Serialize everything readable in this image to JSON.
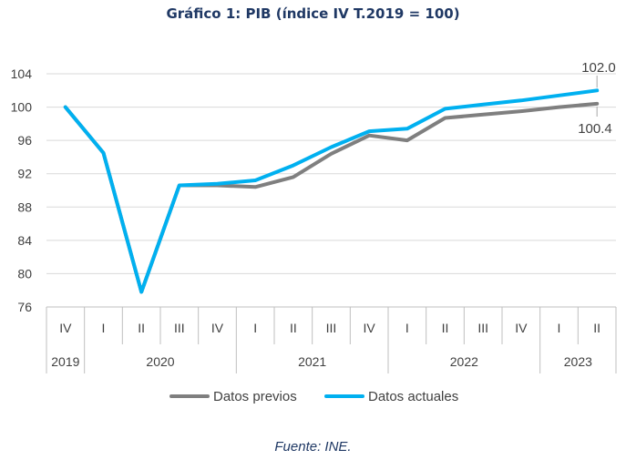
{
  "chart_data": {
    "type": "line",
    "title": "Gráfico 1: PIB (índice IV T.2019 = 100)",
    "source": "Fuente: INE.",
    "ylim": [
      76,
      104
    ],
    "yticks": [
      76,
      80,
      84,
      88,
      92,
      96,
      100,
      104
    ],
    "grid": "horizontal",
    "legend_position": "bottom",
    "quarters": [
      "IV",
      "I",
      "II",
      "III",
      "IV",
      "I",
      "II",
      "III",
      "IV",
      "I",
      "II",
      "III",
      "IV",
      "I",
      "II"
    ],
    "year_groups": [
      {
        "label": "2019",
        "quarters": 1
      },
      {
        "label": "2020",
        "quarters": 4
      },
      {
        "label": "2021",
        "quarters": 4
      },
      {
        "label": "2022",
        "quarters": 4
      },
      {
        "label": "2023",
        "quarters": 2
      }
    ],
    "series": [
      {
        "name": "Datos previos",
        "color": "#7f7f7f",
        "values": [
          100.0,
          94.5,
          77.8,
          90.6,
          90.6,
          90.4,
          91.6,
          94.4,
          96.6,
          96.0,
          98.7,
          99.1,
          99.5,
          100.0,
          100.4
        ],
        "end_label": "100.4"
      },
      {
        "name": "Datos actuales",
        "color": "#00b0f0",
        "values": [
          100.0,
          94.5,
          77.8,
          90.6,
          90.8,
          91.2,
          93.0,
          95.2,
          97.1,
          97.4,
          99.8,
          100.3,
          100.8,
          101.4,
          102.0
        ],
        "end_label": "102.0"
      }
    ]
  }
}
